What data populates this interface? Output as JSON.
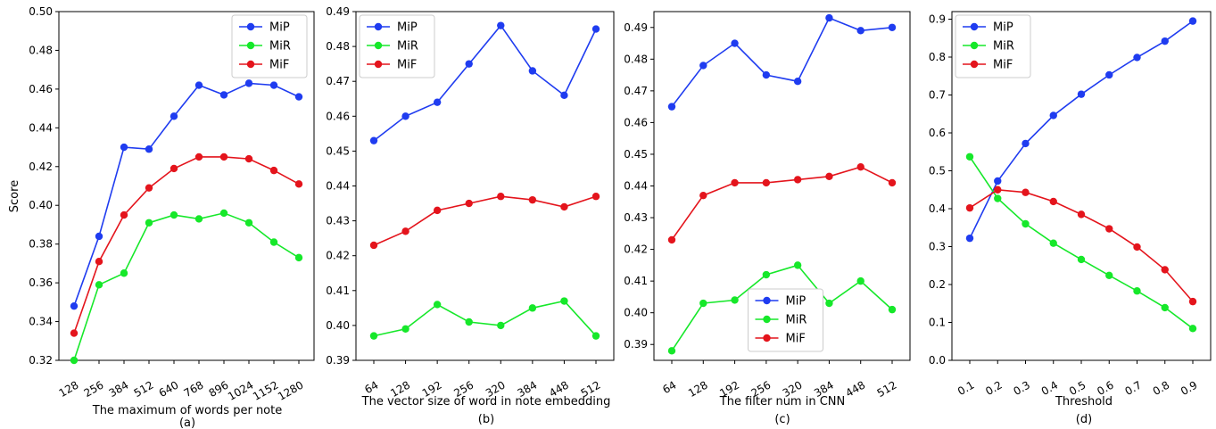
{
  "figure": {
    "y_axis_label": "Score",
    "series_colors": {
      "MiP": "#1f3cf0",
      "MiR": "#16e82a",
      "MiF": "#e4141c"
    }
  },
  "chart_data": [
    {
      "type": "line",
      "panel_label": "(a)",
      "xlabel": "The maximum of words per note",
      "ylabel": "Score",
      "categories": [
        "128",
        "256",
        "384",
        "512",
        "640",
        "768",
        "896",
        "1024",
        "1152",
        "1280"
      ],
      "ylim": [
        0.32,
        0.5
      ],
      "yticks": [
        "0.32",
        "0.34",
        "0.36",
        "0.38",
        "0.40",
        "0.42",
        "0.44",
        "0.46",
        "0.48",
        "0.50"
      ],
      "legend_position": "upper right",
      "series": [
        {
          "name": "MiP",
          "color": "#1f3cf0",
          "values": [
            0.348,
            0.384,
            0.43,
            0.429,
            0.446,
            0.462,
            0.457,
            0.463,
            0.462,
            0.456
          ]
        },
        {
          "name": "MiR",
          "color": "#16e82a",
          "values": [
            0.32,
            0.359,
            0.365,
            0.391,
            0.395,
            0.393,
            0.396,
            0.391,
            0.381,
            0.373
          ]
        },
        {
          "name": "MiF",
          "color": "#e4141c",
          "values": [
            0.334,
            0.371,
            0.395,
            0.409,
            0.419,
            0.425,
            0.425,
            0.424,
            0.418,
            0.411
          ]
        }
      ]
    },
    {
      "type": "line",
      "panel_label": "(b)",
      "xlabel": "The vector size of word in note embedding",
      "ylabel": "",
      "categories": [
        "64",
        "128",
        "192",
        "256",
        "320",
        "384",
        "448",
        "512"
      ],
      "ylim": [
        0.39,
        0.49
      ],
      "yticks": [
        "0.39",
        "0.40",
        "0.41",
        "0.42",
        "0.43",
        "0.44",
        "0.45",
        "0.46",
        "0.47",
        "0.48",
        "0.49"
      ],
      "legend_position": "upper left",
      "series": [
        {
          "name": "MiP",
          "color": "#1f3cf0",
          "values": [
            0.453,
            0.46,
            0.464,
            0.475,
            0.486,
            0.473,
            0.466,
            0.485
          ]
        },
        {
          "name": "MiR",
          "color": "#16e82a",
          "values": [
            0.397,
            0.399,
            0.406,
            0.401,
            0.4,
            0.405,
            0.407,
            0.397
          ]
        },
        {
          "name": "MiF",
          "color": "#e4141c",
          "values": [
            0.423,
            0.427,
            0.433,
            0.435,
            0.437,
            0.436,
            0.434,
            0.437
          ]
        }
      ]
    },
    {
      "type": "line",
      "panel_label": "(c)",
      "xlabel": "The filter num in CNN",
      "ylabel": "",
      "categories": [
        "64",
        "128",
        "192",
        "256",
        "320",
        "384",
        "448",
        "512"
      ],
      "ylim": [
        0.385,
        0.495
      ],
      "yticks": [
        "0.39",
        "0.40",
        "0.41",
        "0.42",
        "0.43",
        "0.44",
        "0.45",
        "0.46",
        "0.47",
        "0.48",
        "0.49"
      ],
      "legend_position": "lower center",
      "series": [
        {
          "name": "MiP",
          "color": "#1f3cf0",
          "values": [
            0.465,
            0.478,
            0.485,
            0.475,
            0.473,
            0.493,
            0.489,
            0.49
          ]
        },
        {
          "name": "MiR",
          "color": "#16e82a",
          "values": [
            0.388,
            0.403,
            0.404,
            0.412,
            0.415,
            0.403,
            0.41,
            0.401
          ]
        },
        {
          "name": "MiF",
          "color": "#e4141c",
          "values": [
            0.423,
            0.437,
            0.441,
            0.441,
            0.442,
            0.443,
            0.446,
            0.441
          ]
        }
      ]
    },
    {
      "type": "line",
      "panel_label": "(d)",
      "xlabel": "Threshold",
      "ylabel": "",
      "categories": [
        "0.1",
        "0.2",
        "0.3",
        "0.4",
        "0.5",
        "0.6",
        "0.7",
        "0.8",
        "0.9"
      ],
      "ylim": [
        0.0,
        0.92
      ],
      "yticks": [
        "0.0",
        "0.1",
        "0.2",
        "0.3",
        "0.4",
        "0.5",
        "0.6",
        "0.7",
        "0.8",
        "0.9"
      ],
      "legend_position": "upper left",
      "series": [
        {
          "name": "MiP",
          "color": "#1f3cf0",
          "values": [
            0.322,
            0.473,
            0.572,
            0.646,
            0.702,
            0.753,
            0.799,
            0.842,
            0.895
          ]
        },
        {
          "name": "MiR",
          "color": "#16e82a",
          "values": [
            0.537,
            0.427,
            0.36,
            0.309,
            0.266,
            0.224,
            0.183,
            0.139,
            0.084
          ]
        },
        {
          "name": "MiF",
          "color": "#e4141c",
          "values": [
            0.402,
            0.45,
            0.443,
            0.419,
            0.385,
            0.347,
            0.299,
            0.239,
            0.155
          ]
        }
      ]
    }
  ]
}
